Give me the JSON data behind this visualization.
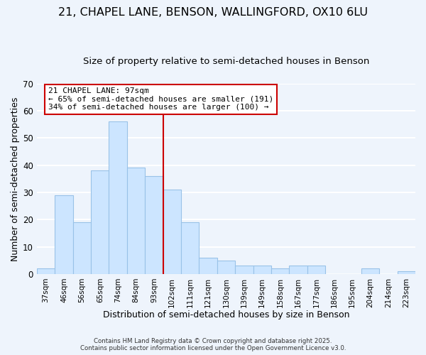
{
  "title_line1": "21, CHAPEL LANE, BENSON, WALLINGFORD, OX10 6LU",
  "title_line2": "Size of property relative to semi-detached houses in Benson",
  "xlabel": "Distribution of semi-detached houses by size in Benson",
  "ylabel": "Number of semi-detached properties",
  "bar_labels": [
    "37sqm",
    "46sqm",
    "56sqm",
    "65sqm",
    "74sqm",
    "84sqm",
    "93sqm",
    "102sqm",
    "111sqm",
    "121sqm",
    "130sqm",
    "139sqm",
    "149sqm",
    "158sqm",
    "167sqm",
    "177sqm",
    "186sqm",
    "195sqm",
    "204sqm",
    "214sqm",
    "223sqm"
  ],
  "bar_heights": [
    2,
    29,
    19,
    38,
    56,
    39,
    36,
    31,
    19,
    6,
    5,
    3,
    3,
    2,
    3,
    3,
    0,
    0,
    2,
    0,
    1
  ],
  "bar_color": "#cce5ff",
  "bar_edge_color": "#99c2e8",
  "vline_x": 6.5,
  "vline_color": "#cc0000",
  "annotation_title": "21 CHAPEL LANE: 97sqm",
  "annotation_line1": "← 65% of semi-detached houses are smaller (191)",
  "annotation_line2": "34% of semi-detached houses are larger (100) →",
  "ylim": [
    0,
    70
  ],
  "yticks": [
    0,
    10,
    20,
    30,
    40,
    50,
    60,
    70
  ],
  "footer_line1": "Contains HM Land Registry data © Crown copyright and database right 2025.",
  "footer_line2": "Contains public sector information licensed under the Open Government Licence v3.0.",
  "bg_color": "#eef4fc",
  "grid_color": "white",
  "title_fontsize": 11.5,
  "subtitle_fontsize": 9.5
}
